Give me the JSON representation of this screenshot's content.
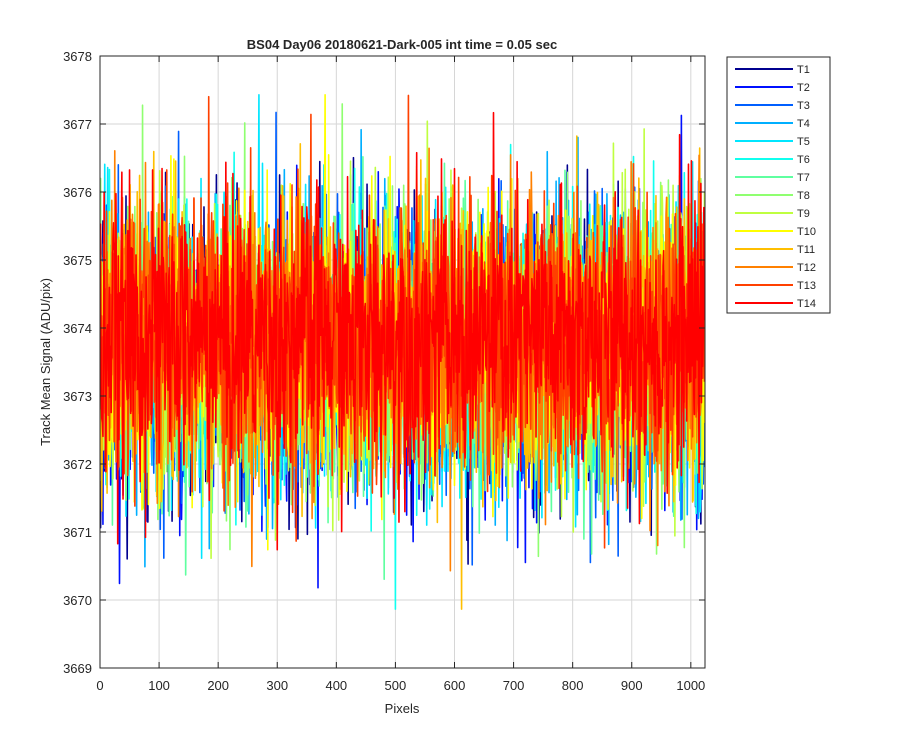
{
  "chart_data": {
    "type": "line",
    "title": "BS04 Day06 20180621-Dark-005 int time = 0.05 sec",
    "xlabel": "Pixels",
    "ylabel": "Track Mean Signal (ADU/pix)",
    "xlim": [
      0,
      1024
    ],
    "ylim": [
      3669,
      3678
    ],
    "xticks": [
      0,
      100,
      200,
      300,
      400,
      500,
      600,
      700,
      800,
      900,
      1000
    ],
    "yticks": [
      3669,
      3670,
      3671,
      3672,
      3673,
      3674,
      3675,
      3676,
      3677,
      3678
    ],
    "grid": true,
    "legend_position": "outside-top-right",
    "series_model": {
      "points_per_series": 1024,
      "approx_mean": 3673.7,
      "approx_noise_sd": 1.0,
      "approx_min": 3669.7,
      "approx_max": 3677.6,
      "description": "Noisy per-pixel dark signal, no trend; red/orange tracks (T12-T14) drawn on top and vary between ~3670 and ~3677.5"
    },
    "series": [
      {
        "name": "T1",
        "color": "#00008F"
      },
      {
        "name": "T2",
        "color": "#0010FF"
      },
      {
        "name": "T3",
        "color": "#005FFF"
      },
      {
        "name": "T4",
        "color": "#00AFFF"
      },
      {
        "name": "T5",
        "color": "#00E6FF"
      },
      {
        "name": "T6",
        "color": "#10FFEF"
      },
      {
        "name": "T7",
        "color": "#5FFFA0"
      },
      {
        "name": "T8",
        "color": "#8FFF70"
      },
      {
        "name": "T9",
        "color": "#BFFF40"
      },
      {
        "name": "T10",
        "color": "#FFFF00"
      },
      {
        "name": "T11",
        "color": "#FFBF00"
      },
      {
        "name": "T12",
        "color": "#FF8000"
      },
      {
        "name": "T13",
        "color": "#FF4000"
      },
      {
        "name": "T14",
        "color": "#FF0000"
      }
    ]
  }
}
